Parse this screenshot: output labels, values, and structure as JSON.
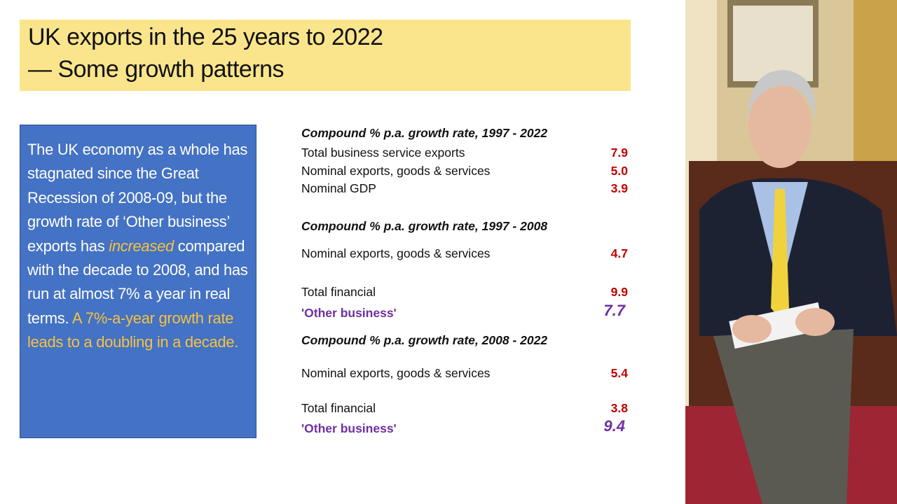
{
  "header": {
    "title_lines": [
      "UK exports in the 25 years to 2022",
      "— Some growth patterns"
    ]
  },
  "callout": {
    "segments": [
      {
        "text": "The UK economy as a whole has stagnated since the Great Recession of 2008-09, but the growth rate of ‘Other business’ exports has ",
        "color": "#ffffff",
        "italic": false
      },
      {
        "text": "increased",
        "color": "#f5c242",
        "italic": true
      },
      {
        "text": " compared with the decade to 2008, and has run at almost 7% a year in real terms. ",
        "color": "#ffffff",
        "italic": false
      },
      {
        "text": "A 7%-a-year growth rate leads to a doubling in a decade.",
        "color": "#f5c242",
        "italic": false
      }
    ]
  },
  "table": {
    "sections": [
      {
        "heading": "Compound % p.a. growth rate, 1997 - 2022",
        "rows": [
          {
            "label": "Total business service exports",
            "value": "7.9",
            "color": "#c00000"
          },
          {
            "label": "Nominal exports, goods & services",
            "value": "5.0",
            "color": "#c00000"
          },
          {
            "label": "Nominal GDP",
            "value": "3.9",
            "color": "#c00000"
          }
        ]
      },
      {
        "heading": "Compound % p.a. growth rate, 1997 - 2008",
        "rows": [
          {
            "label": "Nominal exports, goods & services",
            "value": "4.7",
            "color": "#c00000"
          },
          {
            "label": "Total financial",
            "value": "9.9",
            "color": "#c00000"
          },
          {
            "label": "'Other business'",
            "value": "7.7",
            "color": "#7030a0"
          }
        ]
      },
      {
        "heading": "Compound % p.a. growth rate, 2008 - 2022",
        "rows": [
          {
            "label": "Nominal exports, goods & services",
            "value": "5.4",
            "color": "#c00000"
          },
          {
            "label": "Total financial",
            "value": "3.8",
            "color": "#c00000"
          },
          {
            "label": "'Other business'",
            "value": "9.4",
            "color": "#7030a0"
          }
        ]
      }
    ]
  }
}
